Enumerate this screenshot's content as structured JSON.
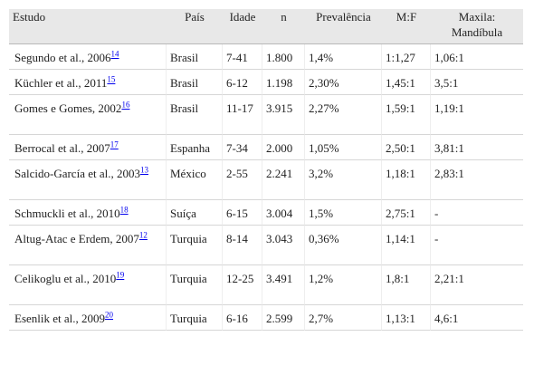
{
  "table": {
    "headers": {
      "study": "Estudo",
      "country": "País",
      "age": "Idade",
      "n": "n",
      "prevalence": "Prevalência",
      "mf": "M:F",
      "maxila_line1": "Maxila:",
      "maxila_line2": "Mandíbula"
    },
    "rows": [
      {
        "study": "Segundo et al., 2006",
        "ref": "14",
        "country": "Brasil",
        "age": "7-41",
        "n": "1.800",
        "prevalence": "1,4%",
        "mf": "1:1,27",
        "ratio": "1,06:1"
      },
      {
        "study": "Küchler et al., 2011",
        "ref": "15",
        "country": "Brasil",
        "age": "6-12",
        "n": "1.198",
        "prevalence": "2,30%",
        "mf": "1,45:1",
        "ratio": "3,5:1"
      },
      {
        "study": "Gomes e Gomes, 2002",
        "ref": "16",
        "country": "Brasil",
        "age": "11-17",
        "n": "3.915",
        "prevalence": "2,27%",
        "mf": "1,59:1",
        "ratio": "1,19:1"
      },
      {
        "study": "Berrocal et al., 2007",
        "ref": "17",
        "country": "Espanha",
        "age": "7-34",
        "n": "2.000",
        "prevalence": "1,05%",
        "mf": "2,50:1",
        "ratio": "3,81:1"
      },
      {
        "study": "Salcido-García et al., 2003",
        "ref": "13",
        "country": "México",
        "age": "2-55",
        "n": "2.241",
        "prevalence": "3,2%",
        "mf": "1,18:1",
        "ratio": "2,83:1"
      },
      {
        "study": "Schmuckli et al., 2010",
        "ref": "18",
        "country": "Suíça",
        "age": "6-15",
        "n": "3.004",
        "prevalence": "1,5%",
        "mf": "2,75:1",
        "ratio": "-"
      },
      {
        "study": "Altug-Atac e Erdem, 2007",
        "ref": "12",
        "country": "Turquia",
        "age": "8-14",
        "n": "3.043",
        "prevalence": "0,36%",
        "mf": "1,14:1",
        "ratio": "-"
      },
      {
        "study": "Celikoglu et al., 2010",
        "ref": "19",
        "country": "Turquia",
        "age": "12-25",
        "n": "3.491",
        "prevalence": "1,2%",
        "mf": "1,8:1",
        "ratio": "2,21:1"
      },
      {
        "study": "Esenlik et al., 2009",
        "ref": "20",
        "country": "Turquia",
        "age": "6-16",
        "n": "2.599",
        "prevalence": "2,7%",
        "mf": "1,13:1",
        "ratio": "4,6:1"
      }
    ]
  }
}
